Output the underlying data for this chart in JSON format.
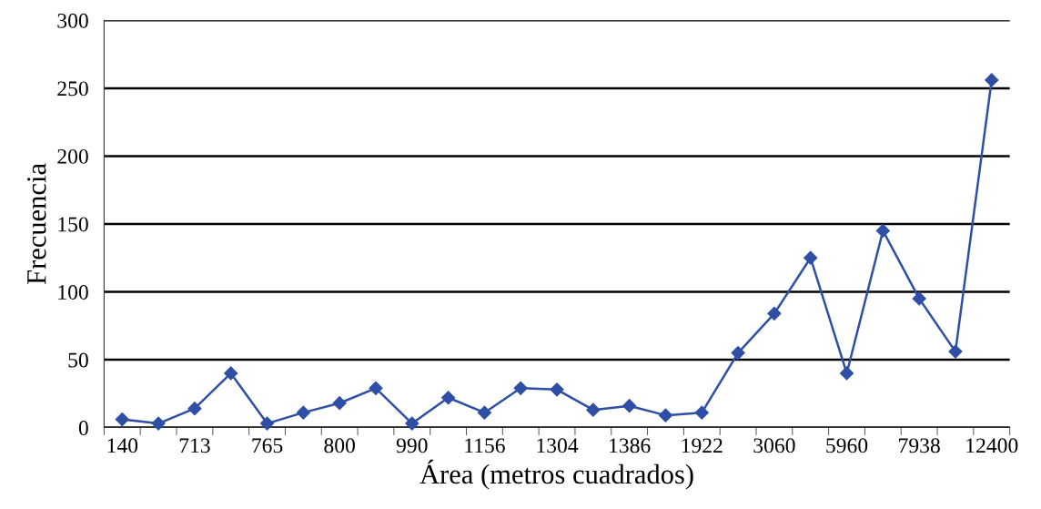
{
  "chart_data": {
    "type": "line",
    "xlabel": "Área (metros cuadrados)",
    "ylabel": "Frecuencia",
    "categories": [
      "140",
      null,
      "713",
      null,
      "765",
      null,
      "800",
      null,
      "990",
      null,
      "1156",
      null,
      "1304",
      null,
      "1386",
      null,
      "1922",
      null,
      "3060",
      null,
      "5960",
      null,
      "7938",
      null,
      "12400"
    ],
    "series": [
      {
        "color": "#2f4fa6",
        "values": [
          6,
          3,
          14,
          40,
          3,
          11,
          18,
          29,
          3,
          22,
          11,
          29,
          28,
          13,
          16,
          9,
          11,
          55,
          84,
          125,
          40,
          145,
          95,
          56,
          256
        ]
      }
    ],
    "ylim": [
      0,
      300
    ],
    "yticks": [
      0,
      50,
      100,
      150,
      200,
      250,
      300
    ],
    "grid": "y",
    "marker": "diamond",
    "line_style": "solid"
  }
}
